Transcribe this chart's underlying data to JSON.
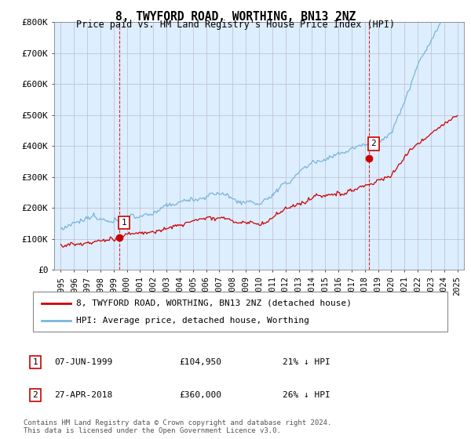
{
  "title": "8, TWYFORD ROAD, WORTHING, BN13 2NZ",
  "subtitle": "Price paid vs. HM Land Registry's House Price Index (HPI)",
  "title_fontsize": 10.5,
  "subtitle_fontsize": 9,
  "ylim": [
    0,
    800000
  ],
  "yticks": [
    0,
    100000,
    200000,
    300000,
    400000,
    500000,
    600000,
    700000,
    800000
  ],
  "ytick_labels": [
    "£0",
    "£100K",
    "£200K",
    "£300K",
    "£400K",
    "£500K",
    "£600K",
    "£700K",
    "£800K"
  ],
  "xlim_start": 1994.5,
  "xlim_end": 2025.5,
  "hpi_color": "#7ab4d8",
  "price_color": "#cc0000",
  "marker_color": "#cc0000",
  "vline_color": "#cc0000",
  "chart_bg_color": "#ddeeff",
  "background_color": "#ffffff",
  "grid_color": "#bbbbcc",
  "legend_line1": "8, TWYFORD ROAD, WORTHING, BN13 2NZ (detached house)",
  "legend_line2": "HPI: Average price, detached house, Worthing",
  "annotation1_num": "1",
  "annotation1_date": "07-JUN-1999",
  "annotation1_price": "£104,950",
  "annotation1_hpi": "21% ↓ HPI",
  "annotation1_year": 1999.44,
  "annotation1_value": 104950,
  "annotation2_num": "2",
  "annotation2_date": "27-APR-2018",
  "annotation2_price": "£360,000",
  "annotation2_hpi": "26% ↓ HPI",
  "annotation2_year": 2018.32,
  "annotation2_value": 360000,
  "footnote": "Contains HM Land Registry data © Crown copyright and database right 2024.\nThis data is licensed under the Open Government Licence v3.0."
}
